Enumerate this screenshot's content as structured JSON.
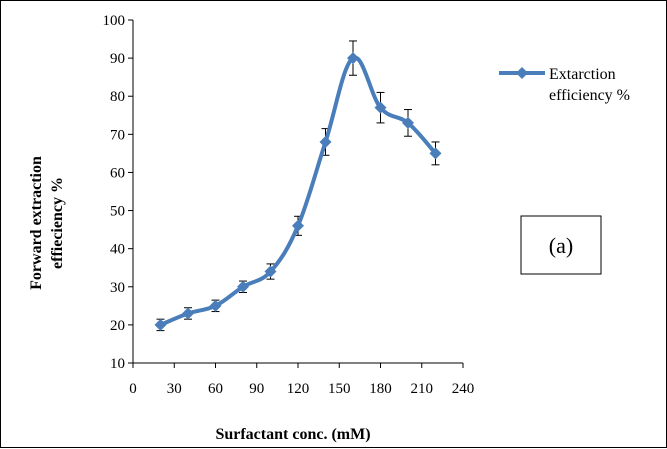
{
  "chart_data": {
    "type": "line",
    "title": "",
    "xlabel": "Surfactant conc. (mM)",
    "ylabel_line1": "Forward extraction",
    "ylabel_line2": "effieciency %",
    "xlim": [
      0,
      240
    ],
    "ylim": [
      10,
      100
    ],
    "x_ticks": [
      0,
      30,
      60,
      90,
      120,
      150,
      180,
      210,
      240
    ],
    "y_ticks": [
      10,
      20,
      30,
      40,
      50,
      60,
      70,
      80,
      90,
      100
    ],
    "grid": false,
    "legend_position": "right",
    "annotation": "(a)",
    "series": [
      {
        "name": "Extarction efficiency %",
        "color": "#4a7ebb",
        "marker": "diamond",
        "smooth": true,
        "x": [
          20,
          40,
          60,
          80,
          100,
          120,
          140,
          160,
          180,
          200,
          220
        ],
        "y": [
          20,
          23,
          25,
          30,
          34,
          46,
          68,
          90,
          77,
          73,
          65
        ],
        "error": [
          1.5,
          1.5,
          1.5,
          1.5,
          2,
          2.5,
          3.5,
          4.5,
          4,
          3.5,
          3
        ]
      }
    ]
  }
}
